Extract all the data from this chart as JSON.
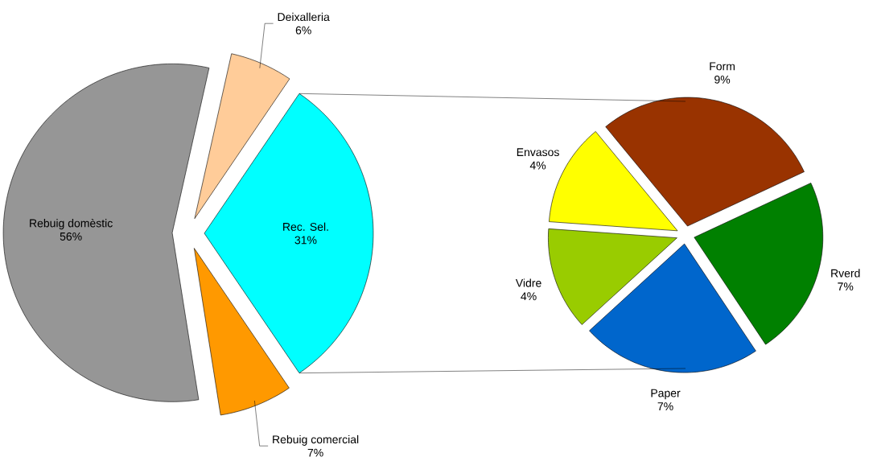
{
  "chart_data": [
    {
      "type": "pie",
      "categories": [
        "Deixalleria",
        "Rec. Sel.",
        "Rebuig comercial",
        "Rebuig domèstic"
      ],
      "values": [
        6,
        31,
        7,
        56
      ],
      "value_labels": [
        "6%",
        "31%",
        "7%",
        "56%"
      ],
      "colors": [
        "#ffcc99",
        "#00ffff",
        "#ff9900",
        "#969696"
      ]
    },
    {
      "type": "pie",
      "categories": [
        "Form",
        "Rverd",
        "Paper",
        "Vidre",
        "Envasos"
      ],
      "values": [
        9,
        7,
        7,
        4,
        4
      ],
      "value_labels": [
        "9%",
        "7%",
        "7%",
        "4%",
        "4%"
      ],
      "colors": [
        "#993300",
        "#008000",
        "#0066cc",
        "#99cc00",
        "#ffff00"
      ]
    }
  ]
}
